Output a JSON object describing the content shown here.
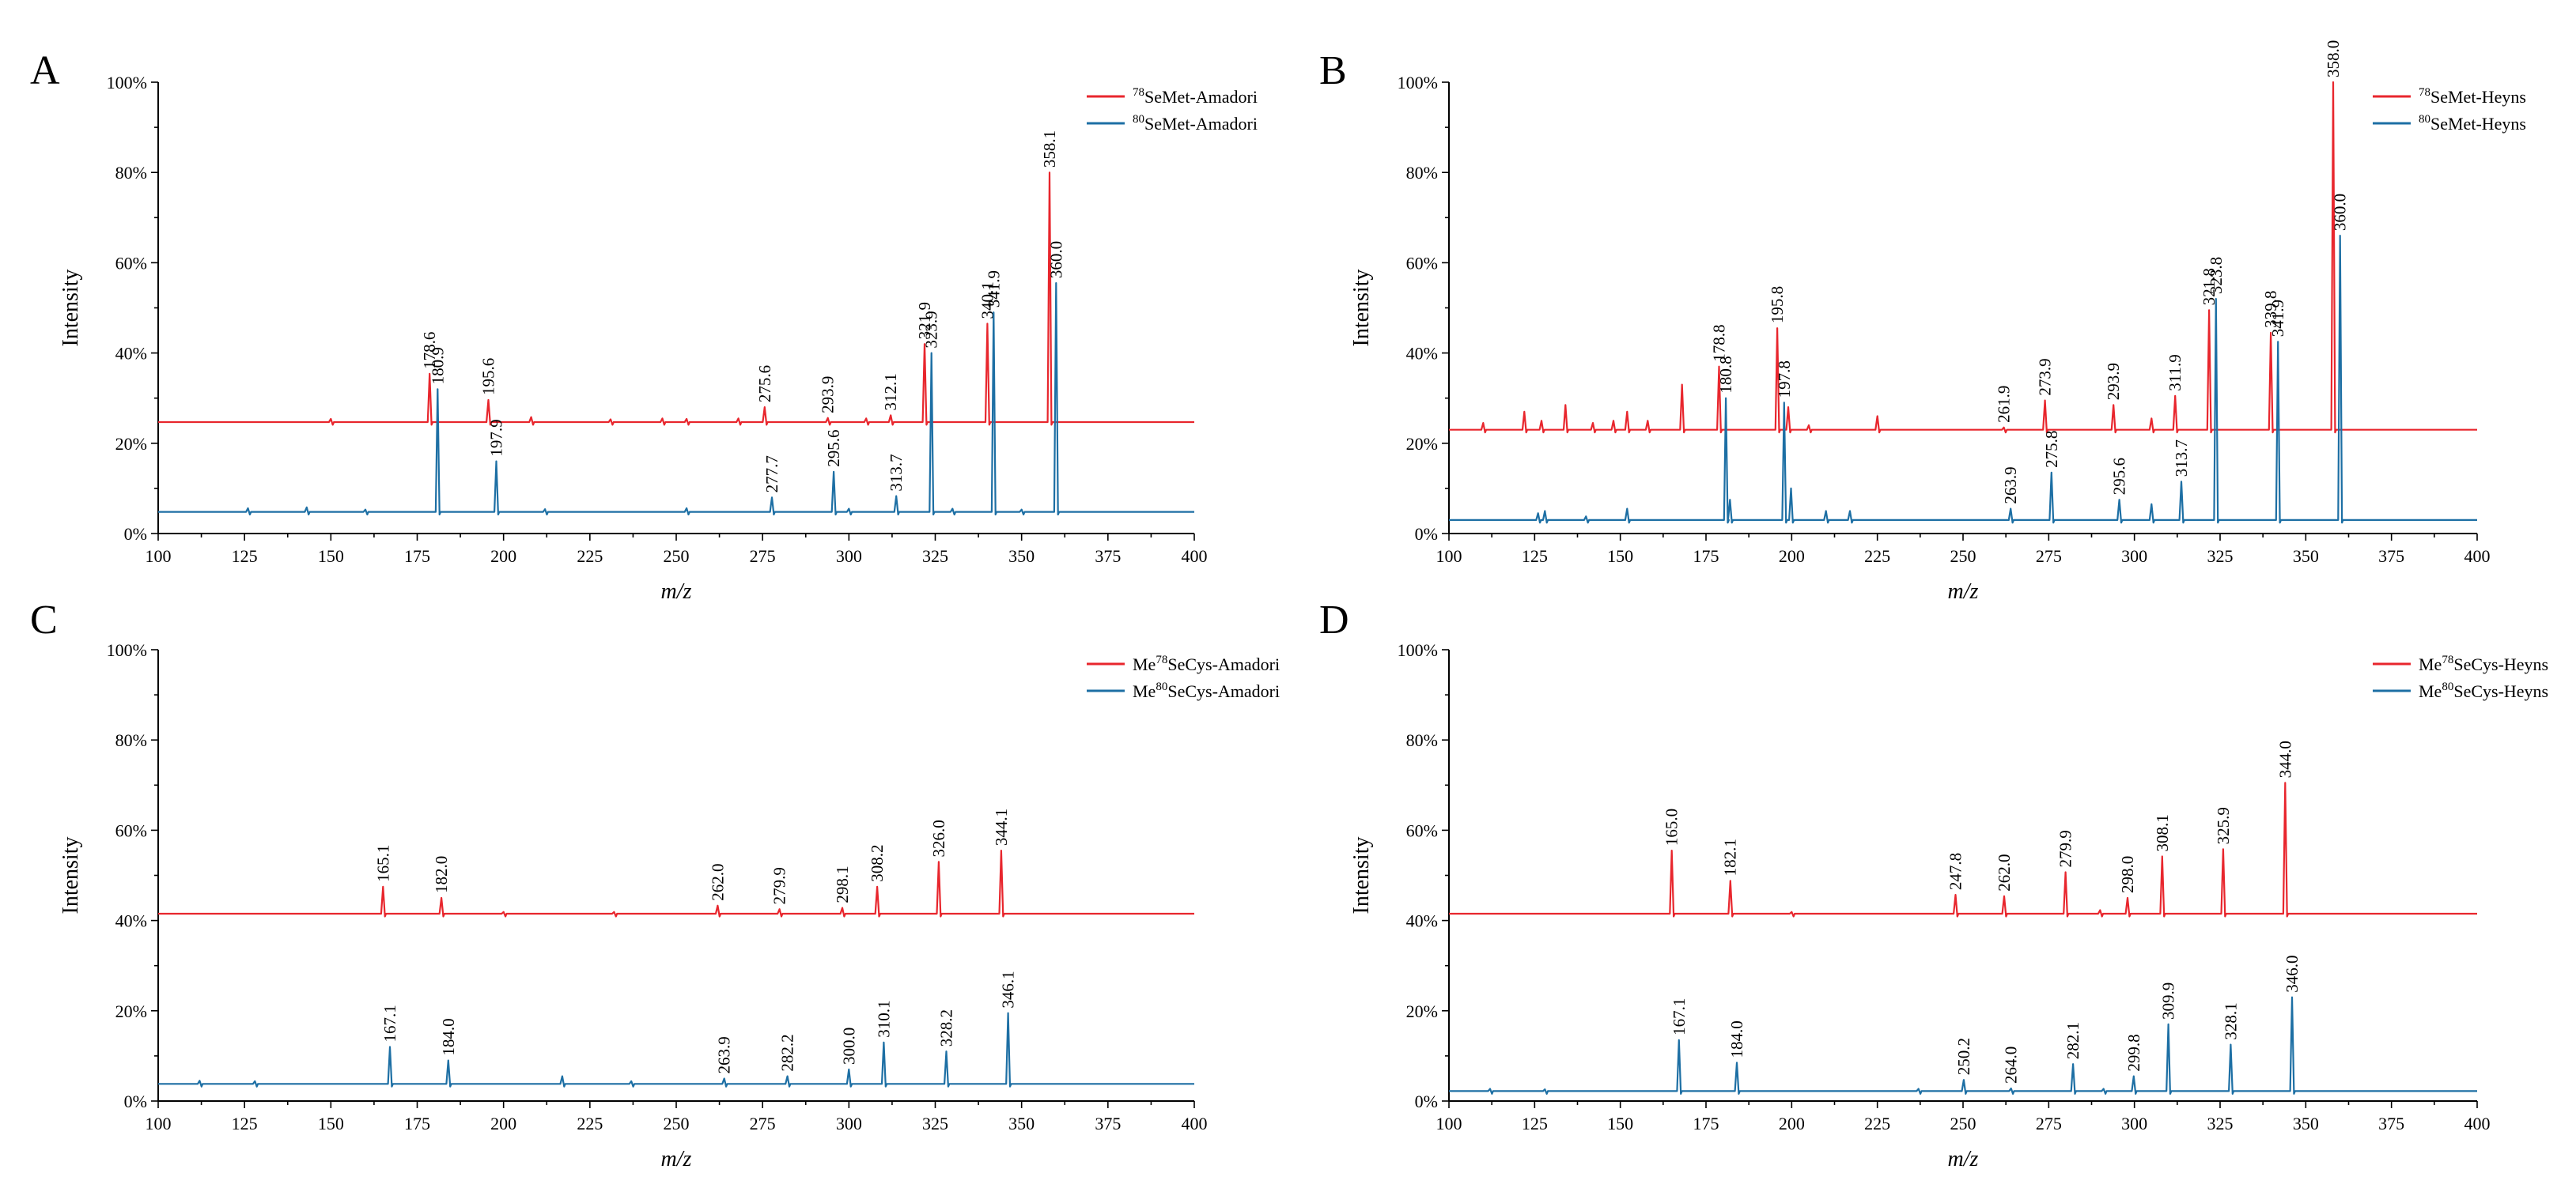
{
  "colors": {
    "series1": "#e8262d",
    "series2": "#1d6fa4"
  },
  "chart_data": [
    {
      "type": "line",
      "panel": "A",
      "xlabel": "m/z",
      "ylabel": "Intensity",
      "xlim": [
        100,
        400
      ],
      "ylim": [
        0,
        100
      ],
      "xticks": [
        "100",
        "125",
        "150",
        "175",
        "200",
        "225",
        "250",
        "275",
        "300",
        "325",
        "350",
        "375",
        "400"
      ],
      "yticks": [
        "0%",
        "20%",
        "40%",
        "60%",
        "80%",
        "100%"
      ],
      "legend_position": "top-right",
      "series": [
        {
          "iso": "78",
          "name": "SeMet-Amadori",
          "baseline": 24.7,
          "peaks": [
            [
              178.6,
              35.4,
              "178.6"
            ],
            [
              195.6,
              29.6,
              "195.6"
            ],
            [
              275.6,
              28.0,
              "275.6"
            ],
            [
              293.9,
              25.6,
              "293.9"
            ],
            [
              312.1,
              26.2,
              "312.1"
            ],
            [
              321.9,
              42.0,
              "321.9"
            ],
            [
              340.1,
              46.5,
              "340.1"
            ],
            [
              358.1,
              80.0,
              "358.1"
            ],
            [
              150,
              25.4,
              null
            ],
            [
              208,
              25.8,
              null
            ],
            [
              231,
              25.3,
              null
            ],
            [
              246,
              25.5,
              null
            ],
            [
              253,
              25.4,
              null
            ],
            [
              268,
              25.5,
              null
            ],
            [
              305,
              25.5,
              null
            ]
          ]
        },
        {
          "iso": "80",
          "name": "SeMet-Amadori",
          "baseline": 4.8,
          "peaks": [
            [
              180.9,
              32.0,
              "180.9"
            ],
            [
              197.9,
              16.0,
              "197.9"
            ],
            [
              277.7,
              8.0,
              "277.7"
            ],
            [
              295.6,
              13.7,
              "295.6"
            ],
            [
              313.7,
              8.3,
              "313.7"
            ],
            [
              323.9,
              40.0,
              "323.9"
            ],
            [
              341.9,
              49.0,
              "341.9"
            ],
            [
              360.0,
              55.5,
              "360.0"
            ],
            [
              126,
              5.6,
              null
            ],
            [
              143,
              5.8,
              null
            ],
            [
              160,
              5.3,
              null
            ],
            [
              212,
              5.4,
              null
            ],
            [
              253,
              5.6,
              null
            ],
            [
              300,
              5.5,
              null
            ],
            [
              330,
              5.5,
              null
            ],
            [
              350,
              5.3,
              null
            ]
          ]
        }
      ]
    },
    {
      "type": "line",
      "panel": "B",
      "xlabel": "m/z",
      "ylabel": "Intensity",
      "xlim": [
        100,
        400
      ],
      "ylim": [
        0,
        100
      ],
      "xticks": [
        "100",
        "125",
        "150",
        "175",
        "200",
        "225",
        "250",
        "275",
        "300",
        "325",
        "350",
        "375",
        "400"
      ],
      "yticks": [
        "0%",
        "20%",
        "40%",
        "60%",
        "80%",
        "100%"
      ],
      "legend_position": "top-right",
      "series": [
        {
          "iso": "78",
          "name": "SeMet-Heyns",
          "baseline": 23.0,
          "peaks": [
            [
              178.8,
              37.0,
              "178.8"
            ],
            [
              195.8,
              45.5,
              "195.8"
            ],
            [
              261.9,
              23.5,
              "261.9"
            ],
            [
              273.9,
              29.5,
              "273.9"
            ],
            [
              293.9,
              28.5,
              "293.9"
            ],
            [
              311.9,
              30.5,
              "311.9"
            ],
            [
              321.8,
              49.5,
              "321.8"
            ],
            [
              339.8,
              44.5,
              "339.8"
            ],
            [
              358.0,
              100,
              "358.0"
            ],
            [
              122,
              27.0,
              null
            ],
            [
              127,
              25.0,
              null
            ],
            [
              134,
              28.5,
              null
            ],
            [
              142,
              24.5,
              null
            ],
            [
              148,
              25.0,
              null
            ],
            [
              152,
              27.0,
              null
            ],
            [
              158,
              25.0,
              null
            ],
            [
              168,
              33.0,
              null
            ],
            [
              199,
              28.0,
              null
            ],
            [
              205,
              24.0,
              null
            ],
            [
              225,
              26.0,
              null
            ],
            [
              305,
              25.5,
              null
            ],
            [
              110,
              24.5,
              null
            ]
          ]
        },
        {
          "iso": "80",
          "name": "SeMet-Heyns",
          "baseline": 3.0,
          "peaks": [
            [
              180.8,
              30.0,
              "180.8"
            ],
            [
              197.8,
              29.0,
              "197.8"
            ],
            [
              263.9,
              5.5,
              "263.9"
            ],
            [
              275.8,
              13.5,
              "275.8"
            ],
            [
              295.6,
              7.5,
              "295.6"
            ],
            [
              313.7,
              11.5,
              "313.7"
            ],
            [
              323.8,
              52.0,
              "323.8"
            ],
            [
              341.9,
              42.5,
              "341.9"
            ],
            [
              360.0,
              66.0,
              "360.0"
            ],
            [
              126,
              4.5,
              null
            ],
            [
              128,
              5.0,
              null
            ],
            [
              152,
              5.5,
              null
            ],
            [
              182,
              7.5,
              null
            ],
            [
              199.8,
              10.0,
              null
            ],
            [
              210,
              5.0,
              null
            ],
            [
              217,
              5.0,
              null
            ],
            [
              305,
              6.5,
              null
            ],
            [
              140,
              3.8,
              null
            ]
          ]
        }
      ]
    },
    {
      "type": "line",
      "panel": "C",
      "xlabel": "m/z",
      "ylabel": "Intensity",
      "xlim": [
        100,
        400
      ],
      "ylim": [
        0,
        100
      ],
      "xticks": [
        "100",
        "125",
        "150",
        "175",
        "200",
        "225",
        "250",
        "275",
        "300",
        "325",
        "350",
        "375",
        "400"
      ],
      "yticks": [
        "0%",
        "20%",
        "40%",
        "60%",
        "80%",
        "100%"
      ],
      "legend_position": "top-right",
      "series": [
        {
          "iso": "78",
          "name": "SeCys-Amadori",
          "prefix": "Me",
          "baseline": 41.5,
          "peaks": [
            [
              165.1,
              47.5,
              "165.1"
            ],
            [
              182.0,
              45.0,
              "182.0"
            ],
            [
              262.0,
              43.3,
              "262.0"
            ],
            [
              279.9,
              42.5,
              "279.9"
            ],
            [
              298.1,
              42.8,
              "298.1"
            ],
            [
              308.2,
              47.5,
              "308.2"
            ],
            [
              326.0,
              53.0,
              "326.0"
            ],
            [
              344.1,
              55.5,
              "344.1"
            ],
            [
              200,
              41.9,
              null
            ],
            [
              232,
              41.9,
              null
            ]
          ]
        },
        {
          "iso": "80",
          "name": "SeCys-Amadori",
          "prefix": "Me",
          "baseline": 3.8,
          "peaks": [
            [
              167.1,
              12.0,
              "167.1"
            ],
            [
              184.0,
              9.0,
              "184.0"
            ],
            [
              263.9,
              5.0,
              "263.9"
            ],
            [
              282.2,
              5.5,
              "282.2"
            ],
            [
              300.0,
              7.0,
              "300.0"
            ],
            [
              310.1,
              13.0,
              "310.1"
            ],
            [
              328.2,
              11.0,
              "328.2"
            ],
            [
              346.1,
              19.5,
              "346.1"
            ],
            [
              112,
              4.5,
              null
            ],
            [
              128,
              4.4,
              null
            ],
            [
              217,
              5.5,
              null
            ],
            [
              237,
              4.4,
              null
            ]
          ]
        }
      ]
    },
    {
      "type": "line",
      "panel": "D",
      "xlabel": "m/z",
      "ylabel": "Intensity",
      "xlim": [
        100,
        400
      ],
      "ylim": [
        0,
        100
      ],
      "xticks": [
        "100",
        "125",
        "150",
        "175",
        "200",
        "225",
        "250",
        "275",
        "300",
        "325",
        "350",
        "375",
        "400"
      ],
      "yticks": [
        "0%",
        "20%",
        "40%",
        "60%",
        "80%",
        "100%"
      ],
      "legend_position": "top-right",
      "series": [
        {
          "iso": "78",
          "name": "SeCys-Heyns",
          "prefix": "Me",
          "baseline": 41.5,
          "peaks": [
            [
              165.0,
              55.5,
              "165.0"
            ],
            [
              182.1,
              48.8,
              "182.1"
            ],
            [
              247.8,
              45.7,
              "247.8"
            ],
            [
              262.0,
              45.4,
              "262.0"
            ],
            [
              279.9,
              50.7,
              "279.9"
            ],
            [
              298.0,
              45.0,
              "298.0"
            ],
            [
              308.1,
              54.2,
              "308.1"
            ],
            [
              325.9,
              55.8,
              "325.9"
            ],
            [
              344.0,
              70.5,
              "344.0"
            ],
            [
              200,
              41.9,
              null
            ],
            [
              290,
              42.3,
              null
            ]
          ]
        },
        {
          "iso": "80",
          "name": "SeCys-Heyns",
          "prefix": "Me",
          "baseline": 2.2,
          "peaks": [
            [
              167.1,
              13.5,
              "167.1"
            ],
            [
              184.0,
              8.5,
              "184.0"
            ],
            [
              250.2,
              4.7,
              "250.2"
            ],
            [
              264.0,
              2.8,
              "264.0"
            ],
            [
              282.1,
              8.2,
              "282.1"
            ],
            [
              299.8,
              5.5,
              "299.8"
            ],
            [
              309.9,
              17.0,
              "309.9"
            ],
            [
              328.1,
              12.5,
              "328.1"
            ],
            [
              346.0,
              23.0,
              "346.0"
            ],
            [
              112,
              2.7,
              null
            ],
            [
              128,
              2.6,
              null
            ],
            [
              237,
              2.7,
              null
            ],
            [
              291,
              2.7,
              null
            ]
          ]
        }
      ]
    }
  ]
}
